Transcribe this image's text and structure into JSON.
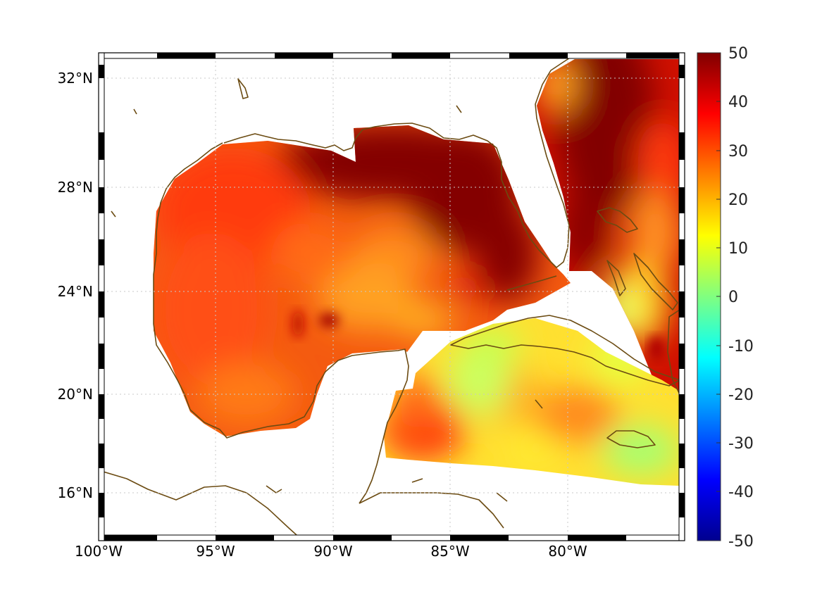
{
  "map": {
    "lon_range": [
      -100,
      -75
    ],
    "lat_range": [
      14.3,
      33.0
    ],
    "lon_ticks": [
      {
        "value": -100,
        "label": "100°W"
      },
      {
        "value": -95,
        "label": "95°W"
      },
      {
        "value": -90,
        "label": "90°W"
      },
      {
        "value": -85,
        "label": "85°W"
      },
      {
        "value": -80,
        "label": "80°W"
      }
    ],
    "lat_ticks": [
      {
        "value": 32,
        "label": "32°N"
      },
      {
        "value": 28,
        "label": "28°N"
      },
      {
        "value": 24,
        "label": "24°N"
      },
      {
        "value": 20,
        "label": "20°N"
      },
      {
        "value": 16,
        "label": "16°N"
      }
    ],
    "gridlines": true,
    "coastline_color": "#6b4b12",
    "colormap": "jet"
  },
  "colorbar": {
    "min": -50,
    "max": 50,
    "ticks": [
      {
        "value": 50,
        "label": "50"
      },
      {
        "value": 40,
        "label": "40"
      },
      {
        "value": 30,
        "label": "30"
      },
      {
        "value": 20,
        "label": "20"
      },
      {
        "value": 10,
        "label": "10"
      },
      {
        "value": 0,
        "label": "0"
      },
      {
        "value": -10,
        "label": "-10"
      },
      {
        "value": -20,
        "label": "-20"
      },
      {
        "value": -30,
        "label": "-30"
      },
      {
        "value": -40,
        "label": "-40"
      },
      {
        "value": -50,
        "label": "-50"
      }
    ]
  }
}
